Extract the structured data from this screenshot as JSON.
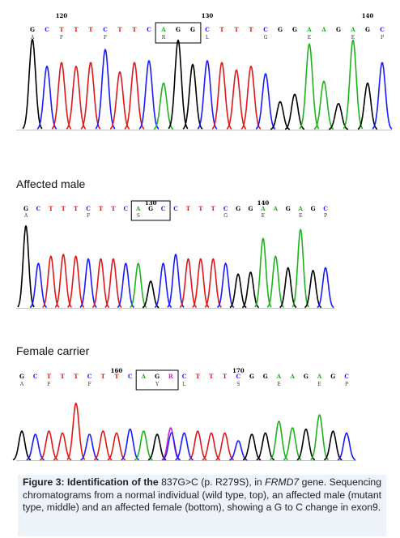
{
  "panels": [
    {
      "id": "wild-type",
      "label": "",
      "bases": [
        "G",
        "C",
        "T",
        "T",
        "T",
        "C",
        "T",
        "T",
        "C",
        "A",
        "G",
        "G",
        "C",
        "T",
        "T",
        "T",
        "C",
        "G",
        "G",
        "A",
        "A",
        "G",
        "A",
        "G",
        "C"
      ],
      "subbases": [
        "A",
        "",
        "F",
        "",
        "",
        "F",
        "",
        "",
        "",
        "R",
        "",
        "",
        "L",
        "",
        "",
        "",
        "G",
        "",
        "",
        "E",
        "",
        "",
        "E",
        "",
        "P"
      ],
      "positions": [
        {
          "text": "120",
          "index": 2
        },
        {
          "text": "130",
          "index": 12
        },
        {
          "text": "140",
          "index": 23
        }
      ],
      "highlight": {
        "start": 9,
        "end": 11
      },
      "peaks": [
        0.97,
        0.68,
        0.72,
        0.68,
        0.72,
        0.86,
        0.62,
        0.72,
        0.74,
        0.5,
        0.96,
        0.7,
        0.74,
        0.72,
        0.64,
        0.68,
        0.6,
        0.3,
        0.38,
        0.92,
        0.52,
        0.28,
        0.96,
        0.5,
        0.72
      ]
    },
    {
      "id": "affected-male",
      "label": "Affected male",
      "bases": [
        "G",
        "C",
        "T",
        "T",
        "T",
        "C",
        "T",
        "T",
        "C",
        "A",
        "G",
        "C",
        "C",
        "T",
        "T",
        "T",
        "C",
        "G",
        "G",
        "A",
        "A",
        "G",
        "A",
        "G",
        "C"
      ],
      "subbases": [
        "A",
        "",
        "",
        "",
        "",
        "F",
        "",
        "",
        "",
        "S",
        "",
        "",
        "",
        "",
        "",
        "",
        "G",
        "",
        "",
        "E",
        "",
        "",
        "E",
        "",
        "P"
      ],
      "positions": [
        {
          "text": "130",
          "index": 10
        },
        {
          "text": "140",
          "index": 19
        }
      ],
      "highlight": {
        "start": 9,
        "end": 11
      },
      "peaks": [
        0.92,
        0.5,
        0.58,
        0.6,
        0.58,
        0.55,
        0.55,
        0.55,
        0.5,
        0.5,
        0.3,
        0.5,
        0.6,
        0.55,
        0.55,
        0.55,
        0.5,
        0.38,
        0.4,
        0.78,
        0.58,
        0.45,
        0.88,
        0.42,
        0.45
      ]
    },
    {
      "id": "female-carrier",
      "label": "Female carrier",
      "bases": [
        "G",
        "C",
        "T",
        "T",
        "T",
        "C",
        "T",
        "T",
        "C",
        "A",
        "G",
        "R",
        "C",
        "T",
        "T",
        "T",
        "C",
        "G",
        "G",
        "A",
        "A",
        "G",
        "A",
        "G",
        "C"
      ],
      "subbases": [
        "A",
        "",
        "F",
        "",
        "",
        "F",
        "",
        "",
        "",
        "",
        "Y",
        "",
        "L",
        "",
        "",
        "",
        "S",
        "",
        "",
        "E",
        "",
        "",
        "E",
        "",
        "P"
      ],
      "positions": [
        {
          "text": "160",
          "index": 7
        },
        {
          "text": "170",
          "index": 16
        }
      ],
      "highlight": {
        "start": 9,
        "end": 11
      },
      "peaks": [
        0.45,
        0.4,
        0.45,
        0.42,
        0.88,
        0.4,
        0.45,
        0.42,
        0.48,
        0.45,
        0.4,
        0.5,
        0.42,
        0.45,
        0.42,
        0.42,
        0.3,
        0.4,
        0.42,
        0.6,
        0.5,
        0.48,
        0.7,
        0.45,
        0.42
      ]
    }
  ],
  "colors": {
    "A": "#1db31d",
    "C": "#1a1aff",
    "G": "#000000",
    "T": "#e01818",
    "R": "#cc22cc",
    "Y": "#000000"
  },
  "caption": {
    "figure": "Figure 3:",
    "title": " Identification of the ",
    "mutation": "837G>C (p. R279S), in ",
    "gene": "FRMD7",
    "rest": " gene. Sequencing chromatograms from a normal individual (wild type, top), an affected male (mutant type, middle) and an affected female (bottom), showing a G to C change in exon9."
  }
}
